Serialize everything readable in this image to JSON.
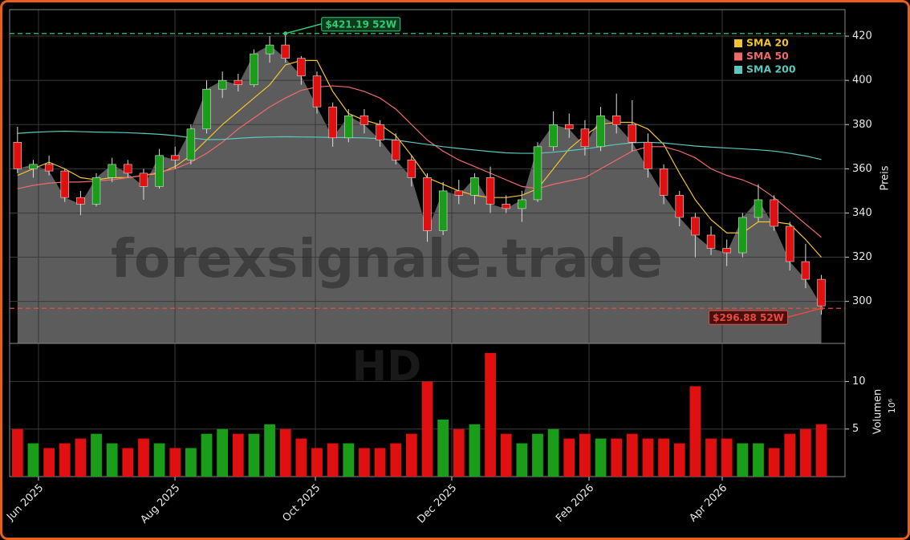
{
  "chart_data": {
    "type": "candlestick",
    "ylabel": "Preis",
    "watermark": "forexsignale.trade",
    "symbol": "HD",
    "up_color": "#1a9e1a",
    "down_color": "#e01010",
    "area_color": "#5c5c5c",
    "grid": true,
    "legend": "upper right",
    "categories": [
      null,
      null,
      null,
      null,
      null,
      null,
      null,
      null,
      null,
      null,
      null,
      null,
      null,
      null,
      null,
      null,
      null,
      null,
      null,
      null,
      null,
      null,
      null,
      null,
      null,
      null,
      null,
      null,
      null,
      null,
      null,
      null,
      null,
      null,
      null,
      null,
      null,
      null,
      null,
      null,
      null,
      null,
      null,
      null,
      null,
      null,
      null,
      null,
      null,
      null,
      null,
      null
    ],
    "open": [
      372,
      360,
      362,
      359,
      347,
      344,
      356,
      362,
      358,
      352,
      366,
      364,
      378,
      396,
      400,
      398,
      412,
      416,
      410,
      402,
      388,
      374,
      384,
      380,
      373,
      364,
      356,
      332,
      350,
      348,
      356,
      344,
      342,
      346,
      370,
      380,
      378,
      370,
      384,
      380,
      372,
      360,
      348,
      338,
      330,
      324,
      322,
      338,
      346,
      334,
      318,
      310
    ],
    "high": [
      379,
      364,
      366,
      360,
      350,
      358,
      365,
      364,
      360,
      369,
      370,
      380,
      400,
      404,
      403,
      414,
      420,
      421,
      411,
      404,
      390,
      387,
      387,
      382,
      376,
      366,
      358,
      354,
      355,
      358,
      361,
      348,
      350,
      372,
      386,
      385,
      382,
      388,
      394,
      391,
      376,
      362,
      350,
      340,
      334,
      328,
      340,
      353,
      348,
      336,
      326,
      312
    ],
    "low": [
      358,
      356,
      357,
      345,
      339,
      343,
      354,
      356,
      346,
      351,
      360,
      362,
      376,
      392,
      395,
      397,
      408,
      408,
      398,
      385,
      370,
      372,
      376,
      370,
      362,
      352,
      327,
      330,
      344,
      344,
      340,
      340,
      336,
      345,
      368,
      374,
      366,
      368,
      376,
      368,
      356,
      344,
      334,
      320,
      321,
      316,
      320,
      336,
      332,
      314,
      306,
      294
    ],
    "close": [
      360,
      362,
      359,
      347,
      344,
      356,
      362,
      358,
      352,
      366,
      364,
      378,
      396,
      400,
      398,
      412,
      416,
      410,
      402,
      388,
      374,
      384,
      380,
      373,
      364,
      356,
      332,
      350,
      348,
      356,
      344,
      342,
      346,
      370,
      380,
      378,
      370,
      384,
      380,
      372,
      360,
      348,
      338,
      330,
      324,
      322,
      338,
      346,
      334,
      318,
      310,
      298
    ],
    "series": [
      {
        "name": "SMA 20",
        "color": "#f2c230",
        "values": [
          357,
          360,
          363,
          360,
          356,
          355,
          356,
          356,
          357,
          358,
          361,
          366,
          373,
          380,
          386,
          392,
          398,
          407,
          409,
          409,
          395,
          385,
          382,
          380,
          375,
          366,
          356,
          353,
          350,
          348,
          347,
          347,
          348,
          351,
          360,
          369,
          375,
          380,
          381,
          381,
          378,
          371,
          358,
          346,
          337,
          331,
          331,
          336,
          336,
          335,
          328,
          320
        ]
      },
      {
        "name": "SMA 50",
        "color": "#f06a6a",
        "values": [
          351,
          352.5,
          353.5,
          354,
          354,
          354.5,
          355,
          356,
          357,
          358.5,
          360,
          363,
          367,
          372,
          378,
          383,
          388,
          392,
          395.5,
          397,
          397.5,
          397,
          395,
          392,
          387,
          380,
          373,
          368,
          364,
          361,
          358,
          355,
          352,
          351,
          353,
          354.5,
          356,
          360,
          364,
          368,
          370,
          370,
          368,
          365,
          360,
          357,
          355,
          352,
          347,
          341,
          335,
          329
        ]
      },
      {
        "name": "SMA 200",
        "color": "#5cc8bd",
        "values": [
          376,
          376.5,
          376.8,
          377,
          376.8,
          376.6,
          376.5,
          376.3,
          376,
          375.6,
          375,
          374,
          373.2,
          373.3,
          373.8,
          374.2,
          374.4,
          374.5,
          374.4,
          374.3,
          374.2,
          374.1,
          374,
          373.6,
          373,
          372,
          371,
          370,
          369.2,
          368.5,
          367.8,
          367.2,
          367,
          367,
          367.5,
          368.2,
          369,
          370,
          371,
          371.8,
          372,
          371.7,
          371,
          370.3,
          369.8,
          369.4,
          369,
          368.6,
          368,
          367,
          365.8,
          364.2
        ]
      }
    ],
    "hlines": [
      {
        "value": 421.19,
        "label": "$421.19 52W",
        "color": "#2ecc71"
      },
      {
        "value": 296.88,
        "label": "$296.88 52W",
        "color": "#e74c3c"
      }
    ],
    "ylim": [
      281,
      432
    ],
    "yticks": [
      300,
      320,
      340,
      360,
      380,
      400,
      420
    ],
    "xticks": [
      {
        "value": 1.33,
        "label": "Jun 2025"
      },
      {
        "value": 9.99,
        "label": "Aug 2025"
      },
      {
        "value": 18.9,
        "label": "Oct 2025"
      },
      {
        "value": 27.55,
        "label": "Dec 2025"
      },
      {
        "value": 36.26,
        "label": "Feb 2026"
      },
      {
        "value": 44.71,
        "label": "Apr 2026"
      }
    ],
    "volume": {
      "ylabel": "Volumen",
      "multiplier_label": "10⁶",
      "values": [
        5,
        3.5,
        3,
        3.5,
        4,
        4.5,
        3.5,
        3,
        4,
        3.5,
        3,
        3,
        4.5,
        5,
        4.5,
        4.5,
        5.5,
        5,
        4,
        3,
        3.5,
        3.5,
        3,
        3,
        3.5,
        4.5,
        10,
        6,
        5,
        5.5,
        13,
        4.5,
        3.5,
        4.5,
        5,
        4,
        4.5,
        4,
        4,
        4.5,
        4,
        4,
        3.5,
        9.5,
        4,
        4,
        3.5,
        3.5,
        3,
        4.5,
        5,
        5.5
      ],
      "ylim": [
        0,
        14
      ],
      "yticks": [
        5,
        10
      ]
    }
  }
}
